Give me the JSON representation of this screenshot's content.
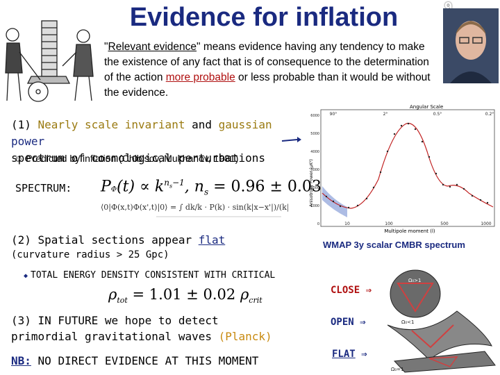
{
  "header": {
    "title": "Evidence for inflation",
    "slide_number": "9"
  },
  "quote": {
    "part1": "\"",
    "underlined": "Relevant evidence",
    "part2": "\" means evidence having any tendency to make the existence of any fact  that is of consequence to  the determination of the action ",
    "red_underlined": "more probable",
    "part3": " or less probable than it would be without the evidence."
  },
  "point1": {
    "prefix": "(1) ",
    "w1": "Nearly scale invariant",
    "w2": " and ",
    "w3": "gaussian",
    "w4": " ",
    "w5": "power",
    "line2": "spectrum of cosmological perturbations",
    "predicted": "Predicted by inflation (Chibisov, Mukhanov, 1981)",
    "smile": "☺"
  },
  "spectrum": {
    "label": "SPECTRUM:",
    "formula_lhs": "P",
    "formula_rhs": "(t) ∝ k",
    "exponent": "n",
    "ns_text": ", n",
    "ns_value": " = 0.96 ± 0.03"
  },
  "point2": {
    "prefix": "(2) Spatial sections appear ",
    "flat": "flat",
    "line2": "(curvature radius > 25 Gpc)",
    "total": "TOTAL ENERGY DENSITY CONSISTENT WITH CRITICAL",
    "bullet": "◆",
    "rho_formula": "= 1.01 ± 0.02",
    "rho": "ρ",
    "tot": "tot",
    "crit": "crit"
  },
  "point3": {
    "line1": "(3) IN FUTURE we hope to detect",
    "line2a": "primordial gravitational waves ",
    "planck": "(Planck)"
  },
  "nb": {
    "label": "NB:",
    "text": " NO DIRECT EVIDENCE AT THIS MOMENT"
  },
  "cmb_chart": {
    "caption": "WMAP 3y scalar CMBR spectrum",
    "top_label": "Angular Scale",
    "top_ticks": [
      "90°",
      "2°",
      "0.5°",
      "0.2°"
    ],
    "xlabel": "Multipole moment (l)",
    "ylabel": "Anisotropy Power (μK²)",
    "x_ticks": [
      "10",
      "100",
      "500",
      "1000"
    ],
    "y_ticks": [
      "6000",
      "5000",
      "4000",
      "3000",
      "2000",
      "1000",
      "0"
    ]
  },
  "geometry": {
    "close": "CLOSE",
    "open": "OPEN",
    "flat": "FLAT",
    "arrow": "⇒",
    "omega_gt": "Ω₀>1",
    "omega_lt": "Ω₀<1",
    "omega_eq": "Ω₀=1"
  },
  "colors": {
    "title": "#1a2a80",
    "accent_red": "#b01010",
    "olive": "#9a7a10",
    "planck": "#c88a10"
  }
}
